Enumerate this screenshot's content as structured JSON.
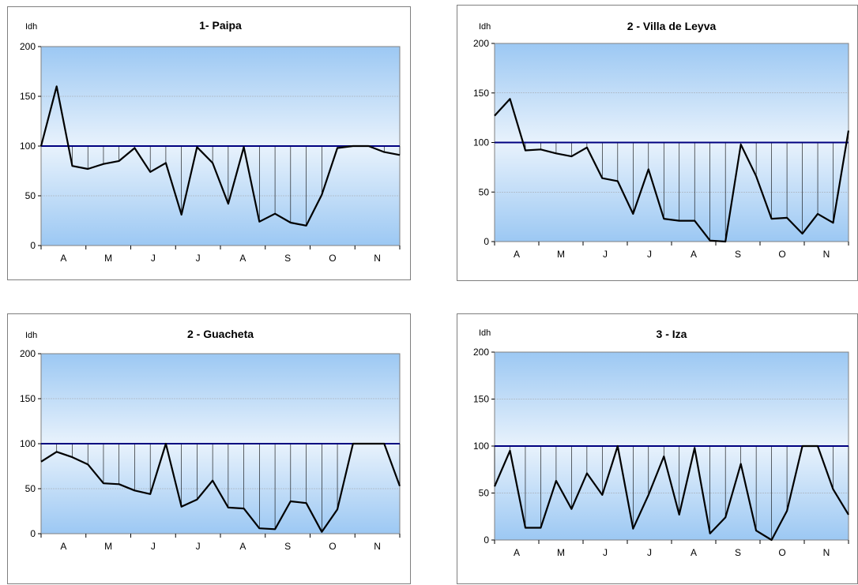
{
  "chart_data": [
    {
      "type": "line",
      "title": "1- Paipa",
      "ylabel": "Idh",
      "ylim": [
        0,
        200
      ],
      "yticks": [
        0,
        50,
        100,
        150,
        200
      ],
      "reference_line": 100,
      "month_labels": [
        "A",
        "M",
        "J",
        "J",
        "A",
        "S",
        "O",
        "N"
      ],
      "series": [
        {
          "values": [
            100,
            160,
            80,
            77,
            82,
            85,
            98,
            74,
            83,
            31,
            99,
            83,
            42,
            99,
            24,
            32,
            23,
            20,
            51,
            98,
            100,
            100,
            94,
            91
          ]
        }
      ]
    },
    {
      "type": "line",
      "title": "2 - Villa de Leyva",
      "ylabel": "Idh",
      "ylim": [
        0,
        200
      ],
      "yticks": [
        0,
        50,
        100,
        150,
        200
      ],
      "reference_line": 100,
      "month_labels": [
        "A",
        "M",
        "J",
        "J",
        "A",
        "S",
        "O",
        "N"
      ],
      "series": [
        {
          "values": [
            127,
            144,
            92,
            93,
            89,
            86,
            95,
            64,
            61,
            28,
            73,
            23,
            21,
            21,
            1,
            0,
            98,
            66,
            23,
            24,
            8,
            28,
            19,
            112
          ]
        }
      ]
    },
    {
      "type": "line",
      "title": "2 - Guacheta",
      "ylabel": "Idh",
      "ylim": [
        0,
        200
      ],
      "yticks": [
        0,
        50,
        100,
        150,
        200
      ],
      "reference_line": 100,
      "month_labels": [
        "A",
        "M",
        "J",
        "J",
        "A",
        "S",
        "O",
        "N"
      ],
      "series": [
        {
          "values": [
            80,
            91,
            85,
            77,
            56,
            55,
            48,
            44,
            100,
            30,
            38,
            59,
            29,
            28,
            6,
            5,
            36,
            34,
            2,
            27,
            100,
            100,
            100,
            53
          ]
        }
      ]
    },
    {
      "type": "line",
      "title": "3 - Iza",
      "ylabel": "Idh",
      "ylim": [
        0,
        200
      ],
      "yticks": [
        0,
        50,
        100,
        150,
        200
      ],
      "reference_line": 100,
      "month_labels": [
        "A",
        "M",
        "J",
        "J",
        "A",
        "S",
        "O",
        "N"
      ],
      "series": [
        {
          "values": [
            57,
            95,
            13,
            13,
            63,
            33,
            71,
            48,
            100,
            12,
            48,
            89,
            27,
            98,
            7,
            24,
            81,
            10,
            0,
            31,
            100,
            100,
            54,
            27
          ]
        }
      ]
    }
  ],
  "colors": {
    "plot_top": "#9cc8f3",
    "plot_mid": "#e8f2fc",
    "plot_bottom": "#9cc8f3",
    "reference_line": "#000080",
    "series_line": "#000000",
    "drop_line": "#000000",
    "grid": "#a0a0a0",
    "panel_border": "#7f7f7f"
  }
}
